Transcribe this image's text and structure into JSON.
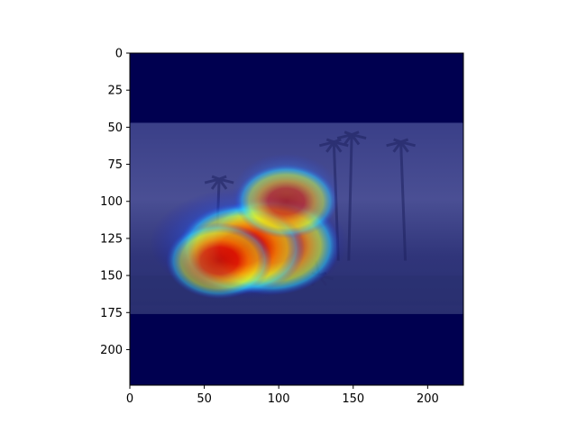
{
  "chart_data": {
    "type": "heatmap",
    "description_kind": "grad-cam style heatmap overlaid on grayscale street photo (palm trees, vehicle)",
    "image_size": [
      224,
      224
    ],
    "colormap": "jet",
    "xlim": [
      0,
      224
    ],
    "ylim": [
      224,
      0
    ],
    "xticks": [
      0,
      50,
      100,
      150,
      200
    ],
    "yticks": [
      0,
      25,
      50,
      75,
      100,
      125,
      150,
      175,
      200
    ],
    "xtick_labels": [
      "0",
      "50",
      "100",
      "150",
      "200"
    ],
    "ytick_labels": [
      "0",
      "25",
      "50",
      "75",
      "100",
      "125",
      "150",
      "175",
      "200"
    ],
    "letterbox_rows": {
      "top_end": 47,
      "bottom_start": 176
    },
    "activation_peaks": [
      {
        "x": 95,
        "y": 130,
        "intensity": 1.0
      },
      {
        "x": 75,
        "y": 132,
        "intensity": 0.85
      },
      {
        "x": 60,
        "y": 140,
        "intensity": 0.55
      },
      {
        "x": 105,
        "y": 100,
        "intensity": 0.5
      }
    ],
    "colors": {
      "background_dark": "#000050",
      "axes_frame": "#000000"
    }
  }
}
